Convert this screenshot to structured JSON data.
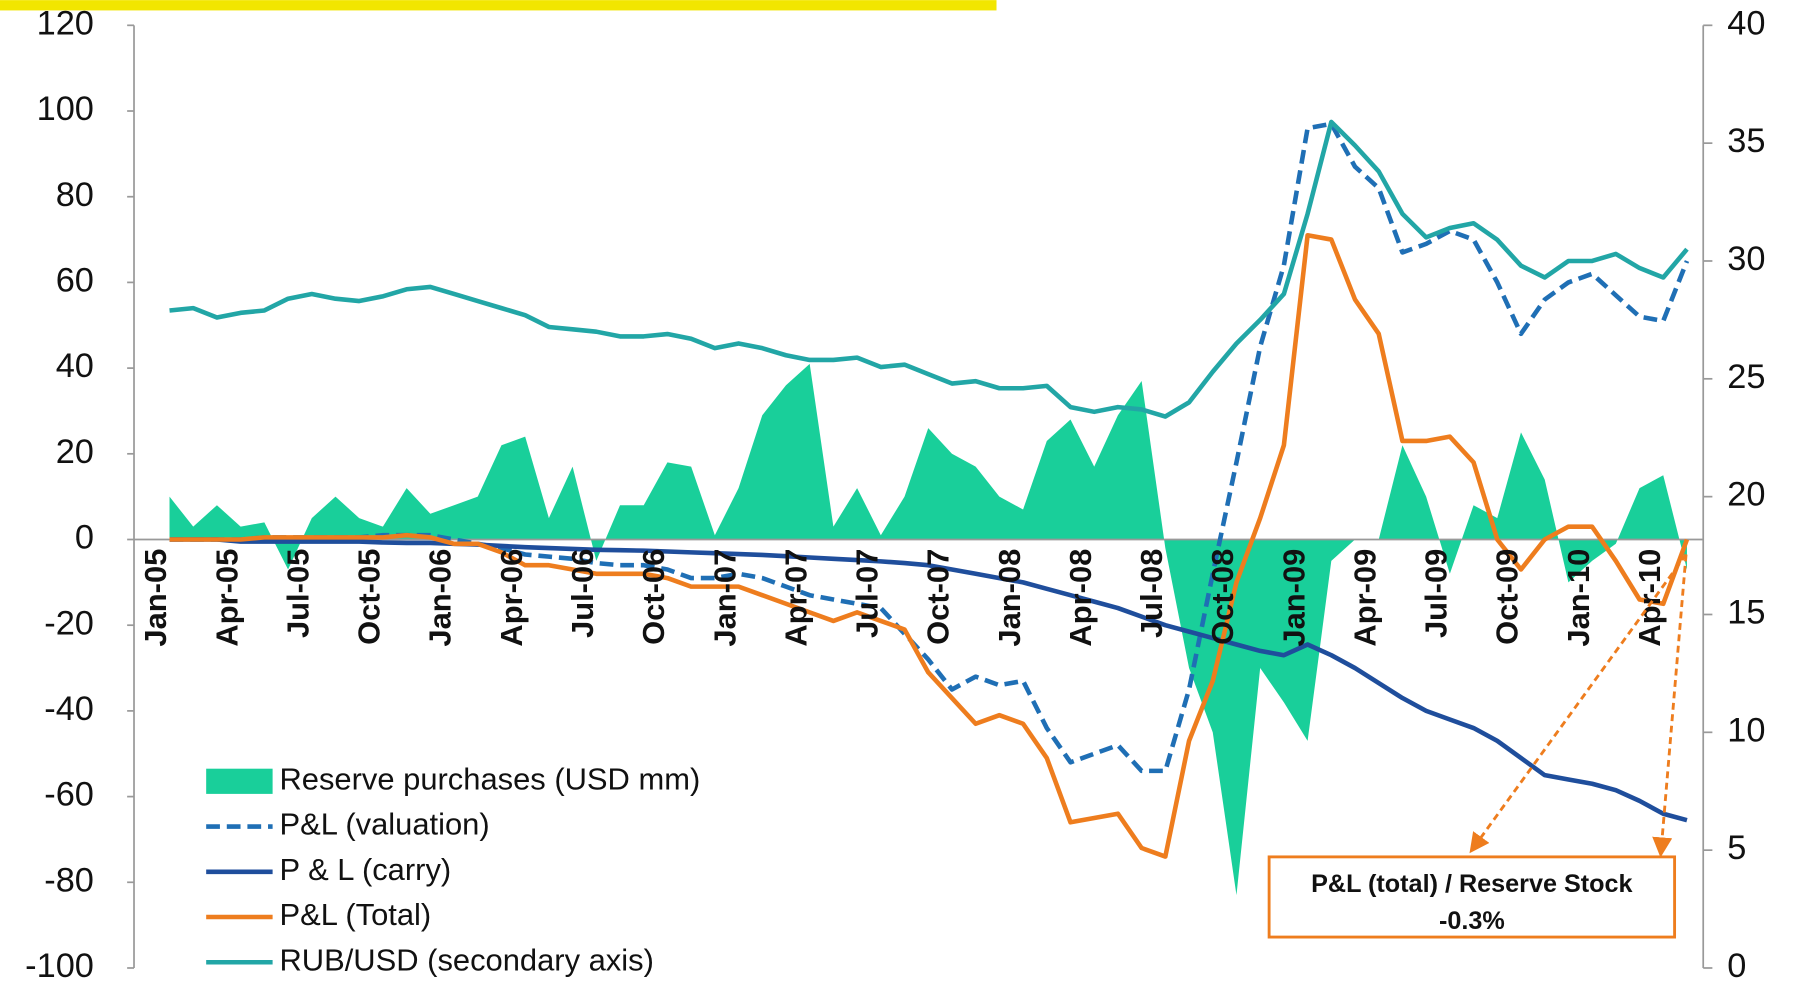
{
  "chart_data": {
    "type": "line",
    "categories": [
      "Jan-05",
      null,
      null,
      "Apr-05",
      null,
      null,
      "Jul-05",
      null,
      null,
      "Oct-05",
      null,
      null,
      "Jan-06",
      null,
      null,
      "Apr-06",
      null,
      null,
      "Jul-06",
      null,
      null,
      "Oct-06",
      null,
      null,
      "Jan-07",
      null,
      null,
      "Apr-07",
      null,
      null,
      "Jul-07",
      null,
      null,
      "Oct-07",
      null,
      null,
      "Jan-08",
      null,
      null,
      "Apr-08",
      null,
      null,
      "Jul-08",
      null,
      null,
      "Oct-08",
      null,
      null,
      "Jan-09",
      null,
      null,
      "Apr-09",
      null,
      null,
      "Jul-09",
      null,
      null,
      "Oct-09",
      null,
      null,
      "Jan-10",
      null,
      null,
      "Apr-10",
      null
    ],
    "series": [
      {
        "name": "Reserve purchases (USD mm)",
        "type": "area",
        "color": "#19cf9a",
        "values": [
          10,
          3,
          8,
          3,
          4,
          -7,
          5,
          10,
          5,
          3,
          12,
          6,
          8,
          10,
          22,
          24,
          5,
          17,
          -5,
          8,
          8,
          18,
          17,
          1,
          12,
          29,
          36,
          41,
          3,
          12,
          1,
          10,
          26,
          20,
          17,
          10,
          7,
          23,
          28,
          17,
          29,
          37,
          -2,
          -30,
          -45,
          -83,
          -30,
          -38,
          -47,
          -5,
          0,
          0,
          22,
          10,
          -8,
          8,
          5,
          25,
          14,
          -10,
          -5,
          -1,
          12,
          15,
          -7
        ]
      },
      {
        "name": "P&L (valuation)",
        "type": "line",
        "dashed": true,
        "color": "#1f6fb5",
        "values": [
          0,
          0,
          0,
          0,
          0.5,
          0.5,
          0.5,
          0.5,
          0.5,
          1,
          1,
          1,
          0,
          -1,
          -2,
          -3.5,
          -4,
          -4.5,
          -5.5,
          -6,
          -6,
          -7,
          -9,
          -9,
          -8,
          -9,
          -11,
          -13,
          -14,
          -15,
          -16,
          -22,
          -28,
          -35,
          -32,
          -34,
          -33,
          -44,
          -52,
          -50,
          -48,
          -54,
          -54,
          -35,
          -8,
          18,
          45,
          64,
          96,
          97,
          87,
          82,
          67,
          69,
          72,
          70,
          60,
          48,
          56,
          60,
          62,
          57,
          52,
          51,
          65
        ]
      },
      {
        "name": "P & L (carry)",
        "type": "line",
        "color": "#1f4e9c",
        "values": [
          0,
          0,
          0,
          -0.5,
          -0.5,
          -0.5,
          -0.5,
          -0.5,
          -0.5,
          -0.7,
          -0.8,
          -0.8,
          -1,
          -1.2,
          -1.5,
          -1.8,
          -2,
          -2.2,
          -2.4,
          -2.5,
          -2.6,
          -2.8,
          -3,
          -3.2,
          -3.4,
          -3.6,
          -3.9,
          -4.2,
          -4.5,
          -4.8,
          -5.1,
          -5.5,
          -6,
          -7,
          -8,
          -9,
          -10,
          -11.5,
          -13,
          -14.5,
          -16,
          -18,
          -20,
          -21.5,
          -23,
          -24.5,
          -26,
          -27,
          -24.5,
          -27,
          -30,
          -33.5,
          -37,
          -40,
          -42,
          -44,
          -47,
          -51,
          -55,
          -56,
          -57,
          -58.5,
          -61,
          -64,
          -65.5
        ]
      },
      {
        "name": "P&L (Total)",
        "type": "line",
        "color": "#ee7d1e",
        "values": [
          0,
          0,
          0,
          0,
          0.5,
          0.5,
          0.5,
          0.5,
          0.5,
          0.5,
          1,
          0.5,
          -1,
          -1,
          -3,
          -6,
          -6,
          -7,
          -8,
          -8,
          -8,
          -9,
          -11,
          -11,
          -11,
          -13,
          -15,
          -17,
          -19,
          -17,
          -19,
          -21,
          -31,
          -37,
          -43,
          -41,
          -43,
          -51,
          -66,
          -65,
          -64,
          -72,
          -74,
          -47,
          -33,
          -10,
          5,
          22,
          71,
          70,
          56,
          48,
          23,
          23,
          24,
          18,
          0,
          -7,
          0,
          3,
          3,
          -5,
          -14,
          -15,
          0
        ]
      },
      {
        "name": "RUB/USD (secondary axis)",
        "type": "line",
        "axis": "y2",
        "color": "#22a6a6",
        "values": [
          27.9,
          28.0,
          27.6,
          27.8,
          27.9,
          28.4,
          28.6,
          28.4,
          28.3,
          28.5,
          28.8,
          28.9,
          28.6,
          28.3,
          28.0,
          27.7,
          27.2,
          27.1,
          27.0,
          26.8,
          26.8,
          26.9,
          26.7,
          26.3,
          26.5,
          26.3,
          26.0,
          25.8,
          25.8,
          25.9,
          25.5,
          25.6,
          25.2,
          24.8,
          24.9,
          24.6,
          24.6,
          24.7,
          23.8,
          23.6,
          23.8,
          23.7,
          23.4,
          24.0,
          25.3,
          26.5,
          27.5,
          28.6,
          32.0,
          35.9,
          34.9,
          33.8,
          32.0,
          31.0,
          31.4,
          31.6,
          30.9,
          29.8,
          29.3,
          30.0,
          30.0,
          30.3,
          29.7,
          29.3,
          30.5
        ]
      }
    ],
    "ylim": [
      -100,
      120
    ],
    "yticks": [
      -100,
      -80,
      -60,
      -40,
      -20,
      0,
      20,
      40,
      60,
      80,
      100,
      120
    ],
    "y2lim": [
      0,
      40
    ],
    "y2ticks": [
      0,
      5,
      10,
      15,
      20,
      25,
      30,
      35,
      40
    ],
    "legend": "bottom-left",
    "annotations": [
      "P&L (total) / Reserve Stock",
      "-0.3%"
    ]
  }
}
